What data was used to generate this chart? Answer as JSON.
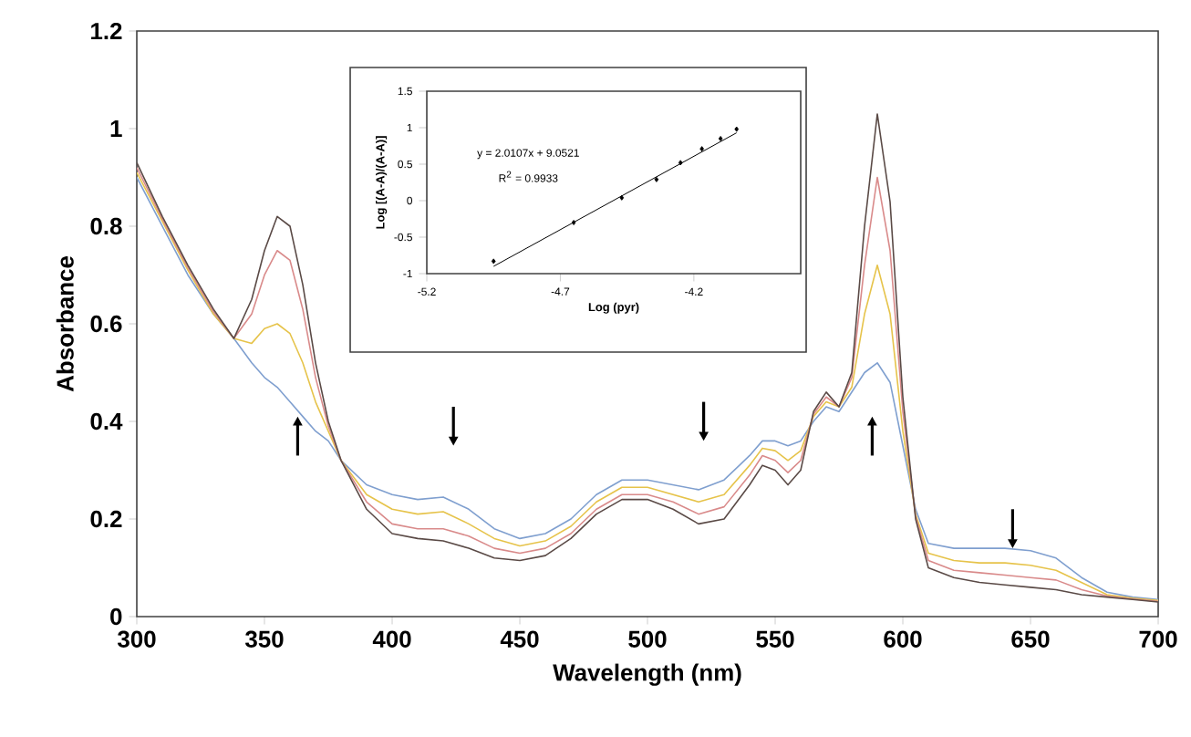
{
  "chart_data": [
    {
      "type": "line",
      "xlabel": "Wavelength (nm)",
      "ylabel": "Absorbance",
      "xlim": [
        300,
        700
      ],
      "ylim": [
        0,
        1.2
      ],
      "xticks": [
        300,
        350,
        400,
        450,
        500,
        550,
        600,
        650,
        700
      ],
      "yticks": [
        0,
        0.2,
        0.4,
        0.6,
        0.8,
        1,
        1.2
      ],
      "x": [
        300,
        310,
        320,
        330,
        338,
        345,
        350,
        355,
        360,
        365,
        370,
        375,
        380,
        390,
        400,
        410,
        420,
        430,
        440,
        450,
        460,
        470,
        480,
        490,
        500,
        510,
        520,
        530,
        540,
        545,
        550,
        555,
        560,
        565,
        570,
        575,
        580,
        585,
        590,
        595,
        600,
        605,
        610,
        620,
        630,
        640,
        650,
        660,
        670,
        680,
        690,
        700
      ],
      "series": [
        {
          "color": "#7f9fcf",
          "values": [
            0.9,
            0.8,
            0.7,
            0.62,
            0.57,
            0.52,
            0.49,
            0.47,
            0.44,
            0.41,
            0.38,
            0.36,
            0.32,
            0.27,
            0.25,
            0.24,
            0.245,
            0.22,
            0.18,
            0.16,
            0.17,
            0.2,
            0.25,
            0.28,
            0.28,
            0.27,
            0.26,
            0.28,
            0.33,
            0.36,
            0.36,
            0.35,
            0.36,
            0.4,
            0.43,
            0.42,
            0.46,
            0.5,
            0.52,
            0.48,
            0.35,
            0.22,
            0.15,
            0.14,
            0.14,
            0.14,
            0.135,
            0.12,
            0.08,
            0.05,
            0.04,
            0.035
          ]
        },
        {
          "color": "#e6c34a",
          "values": [
            0.91,
            0.81,
            0.71,
            0.62,
            0.57,
            0.56,
            0.59,
            0.6,
            0.58,
            0.52,
            0.44,
            0.38,
            0.32,
            0.25,
            0.22,
            0.21,
            0.215,
            0.19,
            0.16,
            0.145,
            0.155,
            0.185,
            0.235,
            0.265,
            0.265,
            0.25,
            0.235,
            0.25,
            0.31,
            0.345,
            0.34,
            0.32,
            0.34,
            0.41,
            0.44,
            0.43,
            0.47,
            0.62,
            0.72,
            0.62,
            0.38,
            0.21,
            0.13,
            0.115,
            0.11,
            0.11,
            0.105,
            0.095,
            0.07,
            0.045,
            0.038,
            0.033
          ]
        },
        {
          "color": "#d98a8a",
          "values": [
            0.92,
            0.815,
            0.715,
            0.625,
            0.57,
            0.62,
            0.7,
            0.75,
            0.73,
            0.63,
            0.49,
            0.39,
            0.32,
            0.235,
            0.19,
            0.18,
            0.18,
            0.165,
            0.14,
            0.13,
            0.14,
            0.17,
            0.22,
            0.25,
            0.25,
            0.235,
            0.21,
            0.225,
            0.29,
            0.33,
            0.32,
            0.295,
            0.32,
            0.415,
            0.45,
            0.43,
            0.49,
            0.72,
            0.9,
            0.75,
            0.42,
            0.205,
            0.115,
            0.095,
            0.09,
            0.085,
            0.08,
            0.075,
            0.055,
            0.042,
            0.036,
            0.031
          ]
        },
        {
          "color": "#5a4a46",
          "values": [
            0.93,
            0.82,
            0.72,
            0.63,
            0.57,
            0.65,
            0.75,
            0.82,
            0.8,
            0.68,
            0.52,
            0.4,
            0.32,
            0.22,
            0.17,
            0.16,
            0.155,
            0.14,
            0.12,
            0.115,
            0.125,
            0.16,
            0.21,
            0.24,
            0.24,
            0.22,
            0.19,
            0.2,
            0.27,
            0.31,
            0.3,
            0.27,
            0.3,
            0.42,
            0.46,
            0.43,
            0.5,
            0.8,
            1.03,
            0.85,
            0.45,
            0.2,
            0.1,
            0.08,
            0.07,
            0.065,
            0.06,
            0.055,
            0.045,
            0.04,
            0.035,
            0.03
          ]
        }
      ]
    },
    {
      "type": "scatter",
      "xlabel": "Log (pyr)",
      "ylabel": "Log [(A-A)/(A-A)]",
      "xlim": [
        -5.2,
        -3.8
      ],
      "ylim": [
        -1,
        1.5
      ],
      "xticks": [
        -5.2,
        -4.7,
        -4.2
      ],
      "yticks": [
        -1,
        -0.5,
        0,
        0.5,
        1,
        1.5
      ],
      "annotations": [
        "y = 2.0107x + 9.0521",
        "R$^{2}$ = 0.9933"
      ],
      "series": [
        {
          "type": "scatter",
          "marker": "diamond",
          "color": "#000000",
          "x": [
            -4.95,
            -4.65,
            -4.47,
            -4.34,
            -4.25,
            -4.17,
            -4.1,
            -4.04
          ],
          "values": [
            -0.83,
            -0.3,
            0.04,
            0.29,
            0.52,
            0.71,
            0.85,
            0.98
          ]
        },
        {
          "type": "line",
          "color": "#000000",
          "x": [
            -4.95,
            -4.04
          ],
          "values": [
            -0.9,
            0.93
          ]
        }
      ]
    }
  ]
}
